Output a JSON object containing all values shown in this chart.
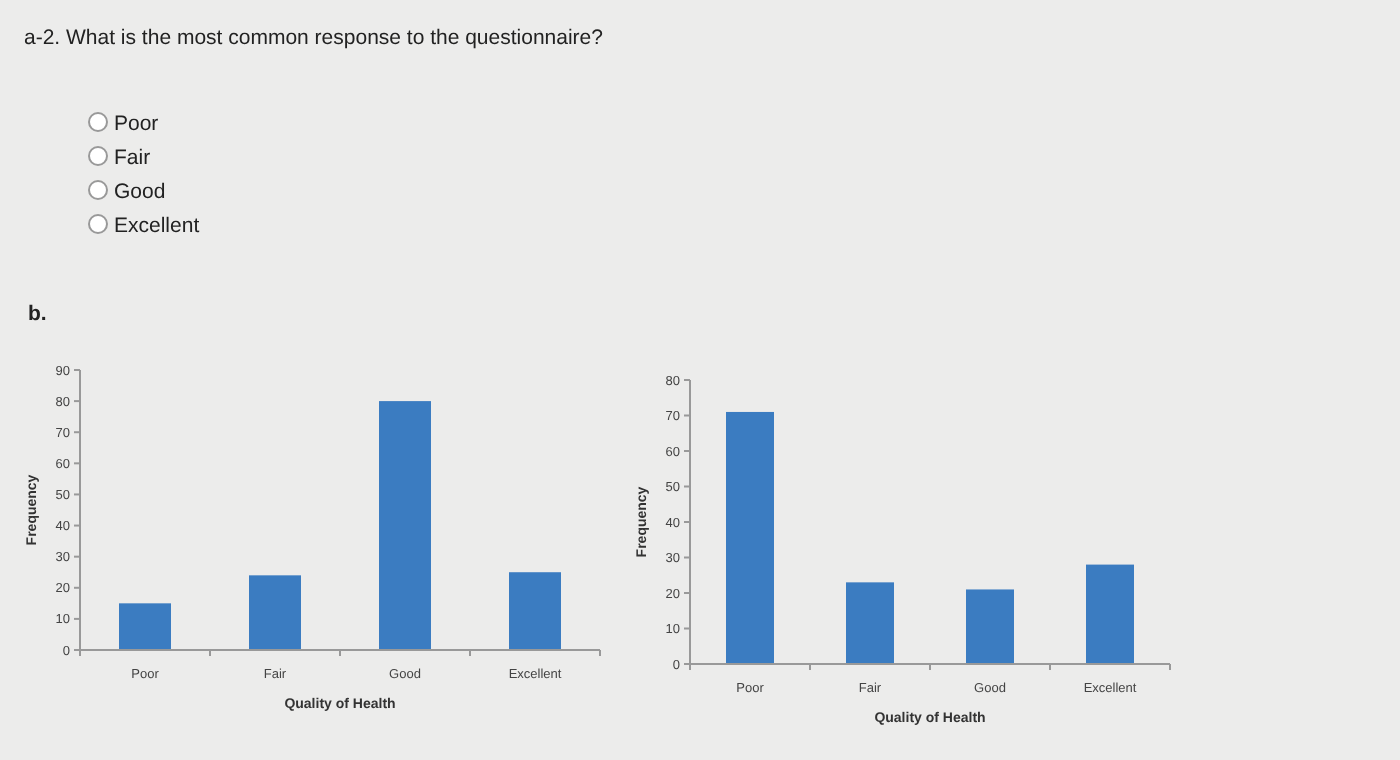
{
  "chart_data": [
    {
      "type": "other",
      "title": "a-2. What is the most common response to the questionnaire?",
      "annotations": [
        "Poor",
        "Fair",
        "Good",
        "Excellent",
        "b."
      ]
    },
    {
      "type": "bar",
      "categories": [
        "Poor",
        "Fair",
        "Good",
        "Excellent"
      ],
      "values": [
        15,
        24,
        80,
        25
      ],
      "color": "#3b7cc1",
      "ylim": [
        0,
        90
      ],
      "yticks": [
        0,
        10,
        20,
        30,
        40,
        50,
        60,
        70,
        80,
        90
      ],
      "xlabel": "Quality of Health",
      "ylabel": "Frequency",
      "grid": false
    },
    {
      "type": "bar",
      "categories": [
        "Poor",
        "Fair",
        "Good",
        "Excellent"
      ],
      "values": [
        71,
        23,
        21,
        28
      ],
      "color": "#3b7cc1",
      "ylim": [
        0,
        80
      ],
      "yticks": [
        0,
        10,
        20,
        30,
        40,
        50,
        60,
        70,
        80
      ],
      "xlabel": "Quality of Health",
      "ylabel": "Frequency",
      "grid": false
    }
  ]
}
